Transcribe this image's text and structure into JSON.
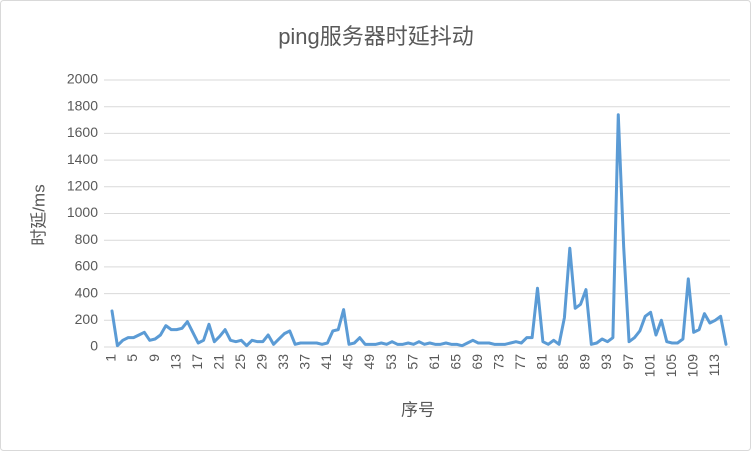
{
  "chart_data": {
    "type": "line",
    "title": "ping服务器时延抖动",
    "x_label": "序号",
    "y_label": "时延/ms",
    "categories": [
      1,
      null,
      null,
      null,
      5,
      null,
      null,
      null,
      9,
      null,
      null,
      null,
      13,
      null,
      null,
      null,
      17,
      null,
      null,
      null,
      21,
      null,
      null,
      null,
      25,
      null,
      null,
      null,
      29,
      null,
      null,
      null,
      33,
      null,
      null,
      null,
      37,
      null,
      null,
      null,
      41,
      null,
      null,
      null,
      45,
      null,
      null,
      null,
      49,
      null,
      null,
      null,
      53,
      null,
      null,
      null,
      57,
      null,
      null,
      null,
      61,
      null,
      null,
      null,
      65,
      null,
      null,
      null,
      69,
      null,
      null,
      null,
      73,
      null,
      null,
      null,
      77,
      null,
      null,
      null,
      81,
      null,
      null,
      null,
      85,
      null,
      null,
      null,
      89,
      null,
      null,
      null,
      93,
      null,
      null,
      null,
      97,
      null,
      null,
      null,
      101,
      null,
      null,
      null,
      105,
      null,
      null,
      null,
      109,
      null,
      null,
      null,
      113,
      null,
      null
    ],
    "series": [
      {
        "name": "时延",
        "color": "#5b9bd5",
        "values": [
          270,
          10,
          50,
          70,
          70,
          90,
          110,
          50,
          60,
          90,
          160,
          130,
          130,
          140,
          190,
          110,
          30,
          50,
          170,
          40,
          80,
          130,
          50,
          40,
          50,
          10,
          50,
          40,
          40,
          90,
          20,
          60,
          100,
          120,
          20,
          30,
          30,
          30,
          30,
          20,
          30,
          120,
          130,
          280,
          20,
          30,
          70,
          20,
          20,
          20,
          30,
          20,
          40,
          20,
          20,
          30,
          20,
          40,
          20,
          30,
          20,
          20,
          30,
          20,
          20,
          10,
          30,
          50,
          30,
          30,
          30,
          20,
          20,
          20,
          30,
          40,
          30,
          70,
          70,
          440,
          40,
          20,
          50,
          20,
          220,
          740,
          290,
          320,
          430,
          20,
          30,
          60,
          40,
          70,
          1740,
          750,
          40,
          70,
          120,
          230,
          260,
          90,
          200,
          40,
          30,
          30,
          60,
          510,
          110,
          130,
          250,
          180,
          200,
          230,
          20
        ]
      }
    ],
    "ylim": [
      0,
      2000
    ],
    "yticks": [
      0,
      200,
      400,
      600,
      800,
      1000,
      1200,
      1400,
      1600,
      1800,
      2000
    ],
    "grid": true
  }
}
